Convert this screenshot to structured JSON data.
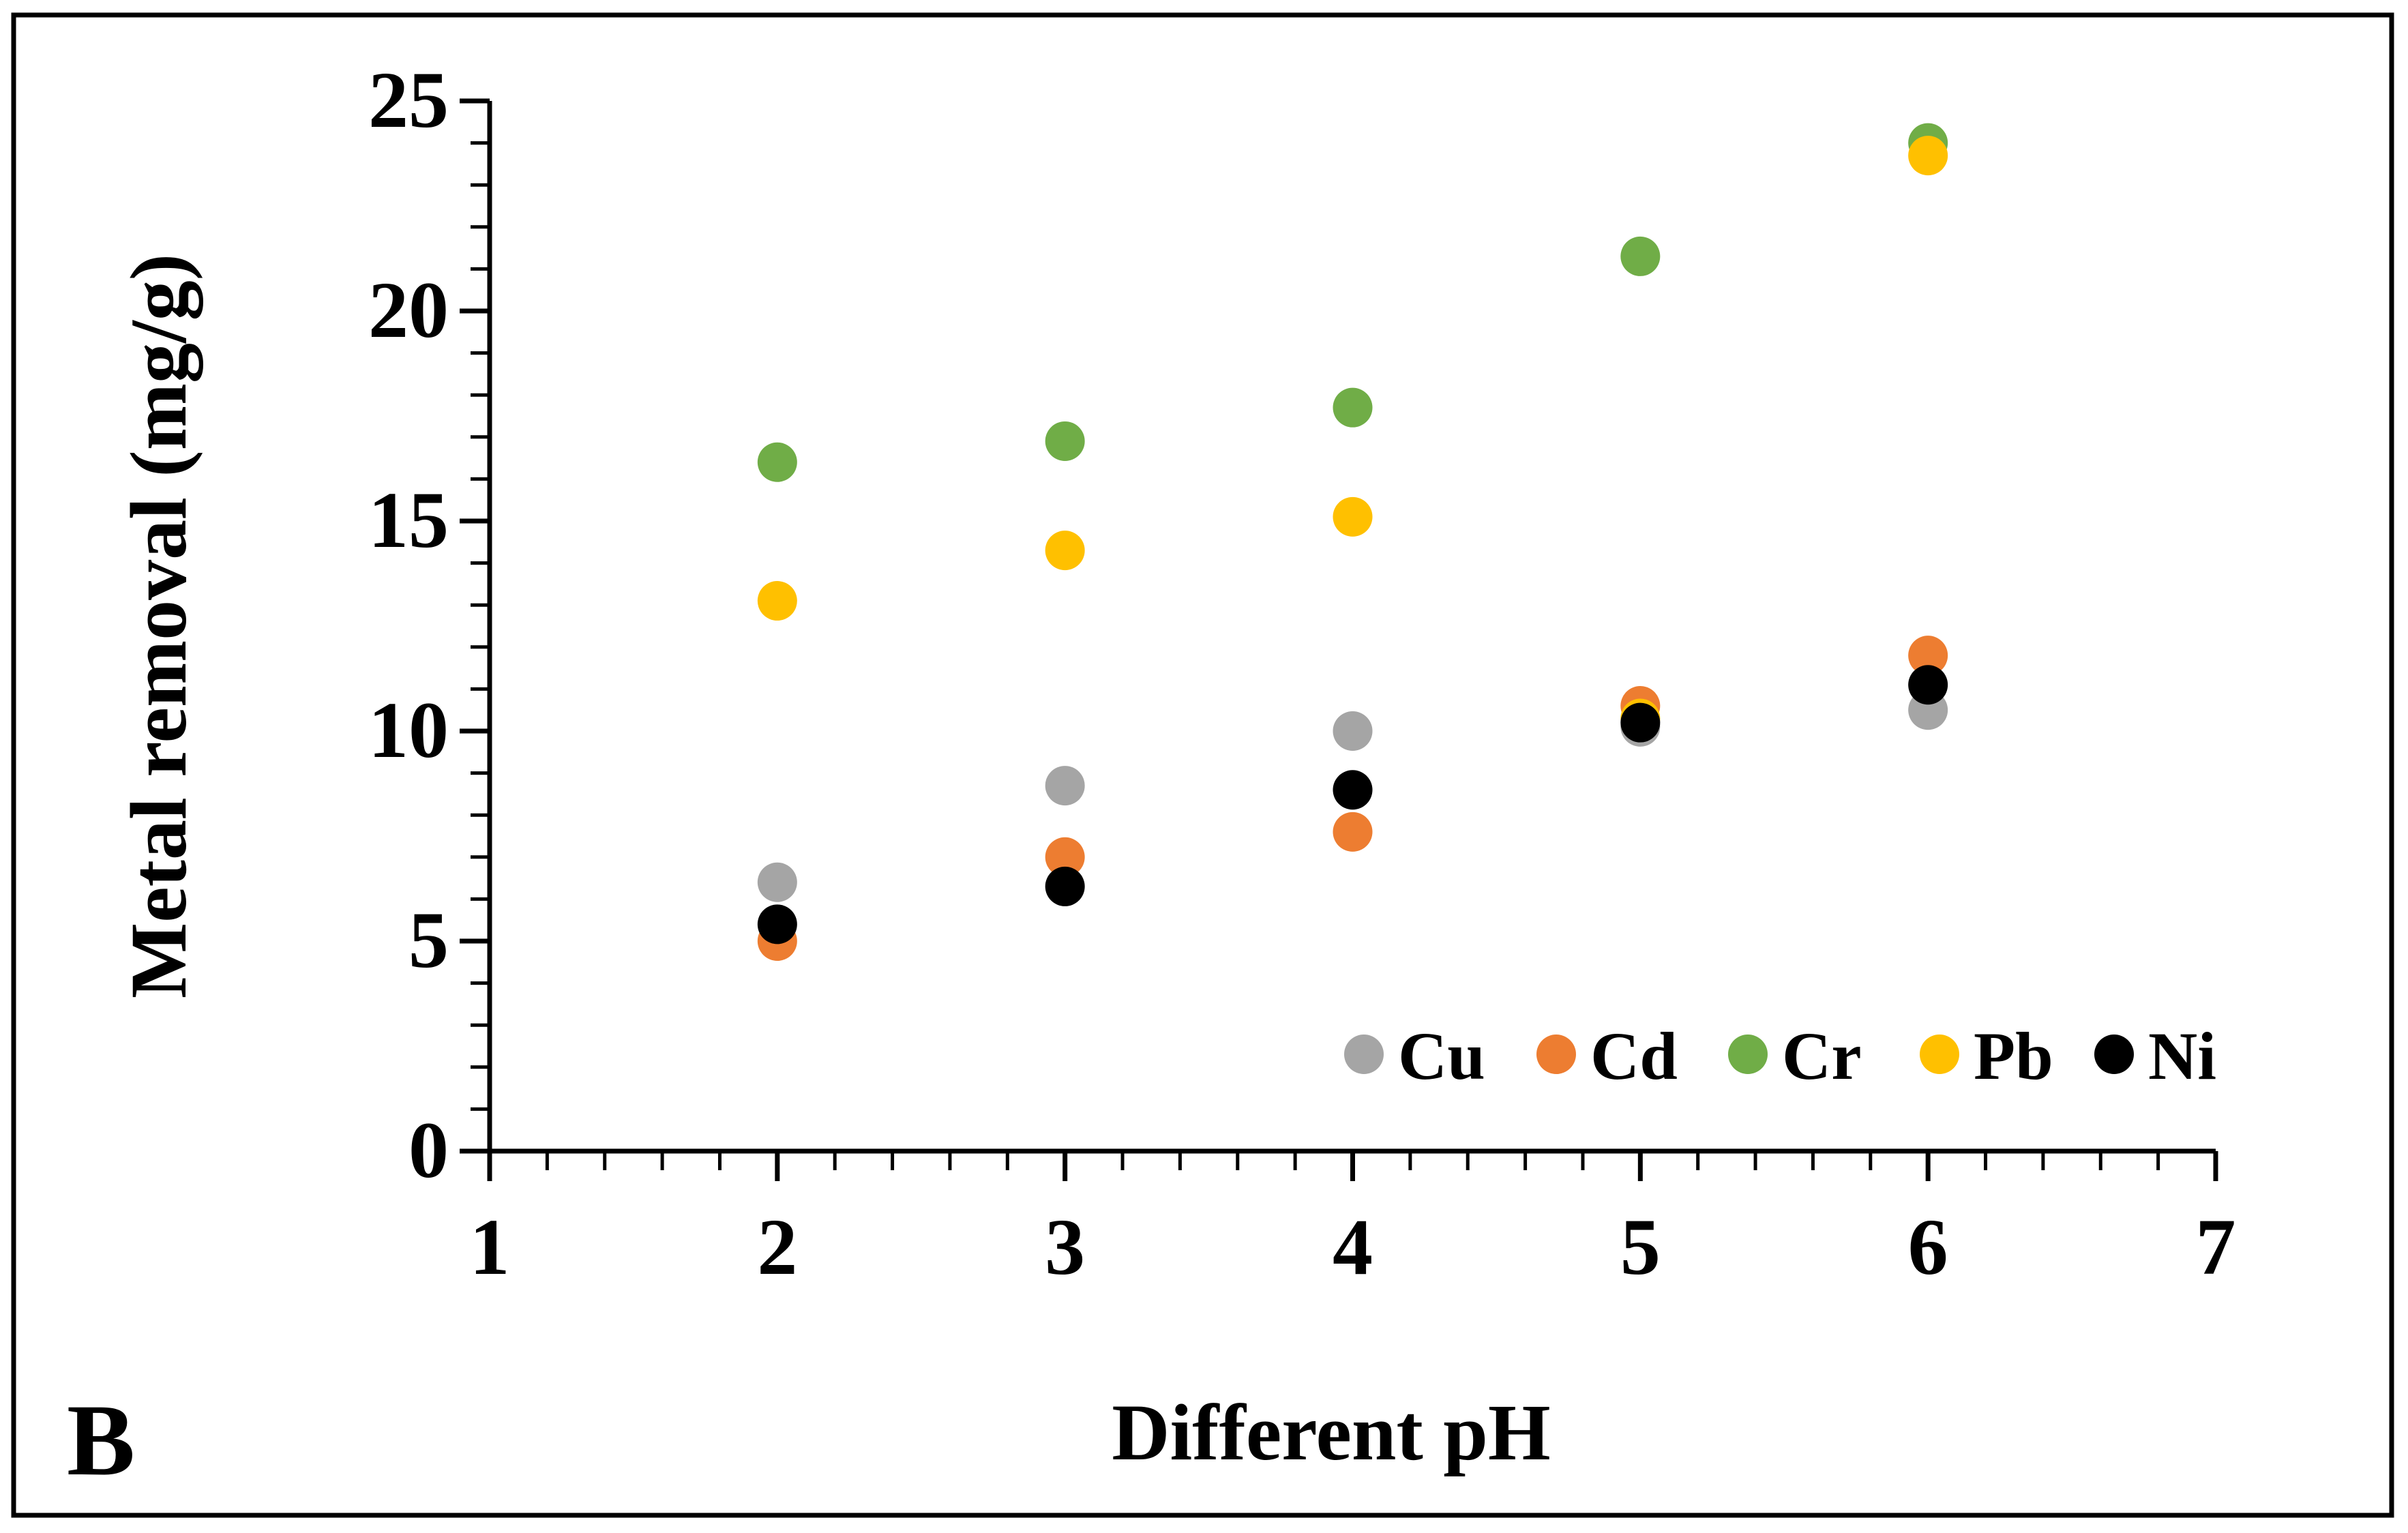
{
  "panel_label": "B",
  "chart_data": {
    "type": "scatter",
    "title": "",
    "xlabel": "Different pH",
    "ylabel": "Metal removal (mg/g)",
    "xlim": [
      1,
      7
    ],
    "ylim": [
      0,
      25
    ],
    "x_major_ticks": [
      1,
      2,
      3,
      4,
      5,
      6,
      7
    ],
    "x_tick_labels": [
      "1",
      "2",
      "3",
      "4",
      "5",
      "6",
      "7"
    ],
    "x_minor_step": 0.2,
    "y_major_ticks": [
      0,
      5,
      10,
      15,
      20,
      25
    ],
    "y_tick_labels": [
      "0",
      "5",
      "10",
      "15",
      "20",
      "25"
    ],
    "y_minor_step": 1,
    "grid": false,
    "legend_position": "bottom-right",
    "series": [
      {
        "name": "Cu",
        "color": "#a5a5a5",
        "x": [
          2,
          3,
          4,
          5,
          6
        ],
        "y": [
          6.4,
          8.7,
          10.0,
          10.1,
          10.5
        ]
      },
      {
        "name": "Cd",
        "color": "#ed7d31",
        "x": [
          2,
          3,
          4,
          5,
          6
        ],
        "y": [
          5.0,
          7.0,
          7.6,
          10.6,
          11.8
        ]
      },
      {
        "name": "Cr",
        "color": "#70ad47",
        "x": [
          2,
          3,
          4,
          5,
          6
        ],
        "y": [
          16.4,
          16.9,
          17.7,
          21.3,
          24.0
        ]
      },
      {
        "name": "Pb",
        "color": "#ffc000",
        "x": [
          2,
          3,
          4,
          5,
          6
        ],
        "y": [
          13.1,
          14.3,
          15.1,
          10.3,
          23.7
        ]
      },
      {
        "name": "Ni",
        "color": "#000000",
        "x": [
          2,
          3,
          4,
          5,
          6
        ],
        "y": [
          5.4,
          6.3,
          8.6,
          10.2,
          11.1
        ]
      }
    ]
  }
}
